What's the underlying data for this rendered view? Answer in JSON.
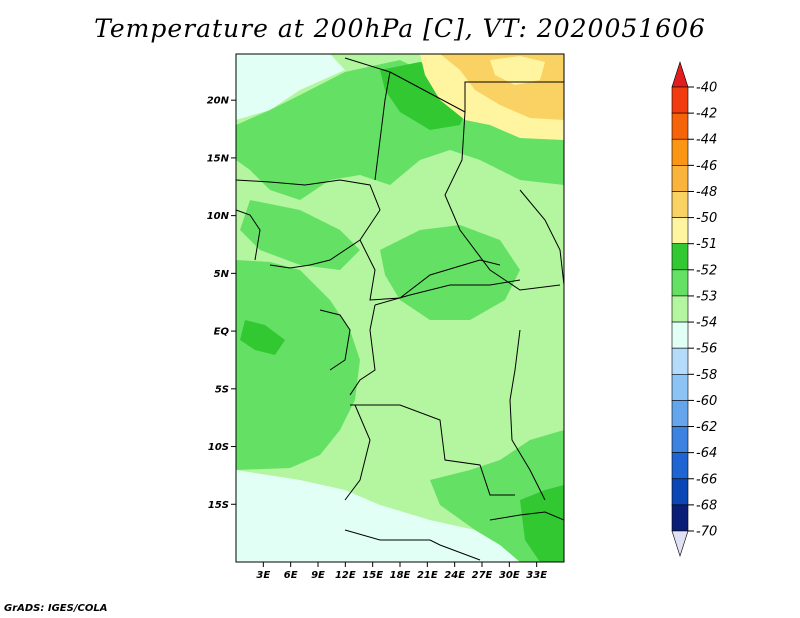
{
  "title": "Temperature at 200hPa [C], VT: 2020051606",
  "credit": "GrADS: IGES/COLA",
  "map": {
    "lon_range": [
      0,
      36
    ],
    "lat_range": [
      -20,
      24
    ],
    "lon_ticks": [
      {
        "value": 3,
        "label": "3E"
      },
      {
        "value": 6,
        "label": "6E"
      },
      {
        "value": 9,
        "label": "9E"
      },
      {
        "value": 12,
        "label": "12E"
      },
      {
        "value": 15,
        "label": "15E"
      },
      {
        "value": 18,
        "label": "18E"
      },
      {
        "value": 21,
        "label": "21E"
      },
      {
        "value": 24,
        "label": "24E"
      },
      {
        "value": 27,
        "label": "27E"
      },
      {
        "value": 30,
        "label": "30E"
      },
      {
        "value": 33,
        "label": "33E"
      }
    ],
    "lat_ticks": [
      {
        "value": 20,
        "label": "20N"
      },
      {
        "value": 15,
        "label": "15N"
      },
      {
        "value": 10,
        "label": "10N"
      },
      {
        "value": 5,
        "label": "5N"
      },
      {
        "value": 0,
        "label": "EQ"
      },
      {
        "value": -5,
        "label": "5S"
      },
      {
        "value": -10,
        "label": "10S"
      },
      {
        "value": -15,
        "label": "15S"
      }
    ]
  },
  "colorbar": {
    "labels": [
      "-40",
      "-42",
      "-44",
      "-46",
      "-48",
      "-50",
      "-51",
      "-52",
      "-53",
      "-54",
      "-56",
      "-58",
      "-60",
      "-62",
      "-64",
      "-66",
      "-68",
      "-70"
    ],
    "colors": [
      "#e01e1e",
      "#f03c0f",
      "#f5640a",
      "#fa9614",
      "#fab43c",
      "#fad264",
      "#fff5a0",
      "#32c832",
      "#64e164",
      "#b4f5a0",
      "#e1fff5",
      "#b4dcfa",
      "#8cc3f5",
      "#64a5eb",
      "#3c82e1",
      "#1e64d2",
      "#0a46b4",
      "#0a1e78",
      "#e1e1f5"
    ]
  },
  "legend_colors": {
    "c_m50": "#fad264",
    "c_m51": "#fff5a0",
    "c_m52": "#32c832",
    "c_m53": "#64e164",
    "c_m54": "#b4f5a0",
    "c_m56": "#e1fff5"
  }
}
